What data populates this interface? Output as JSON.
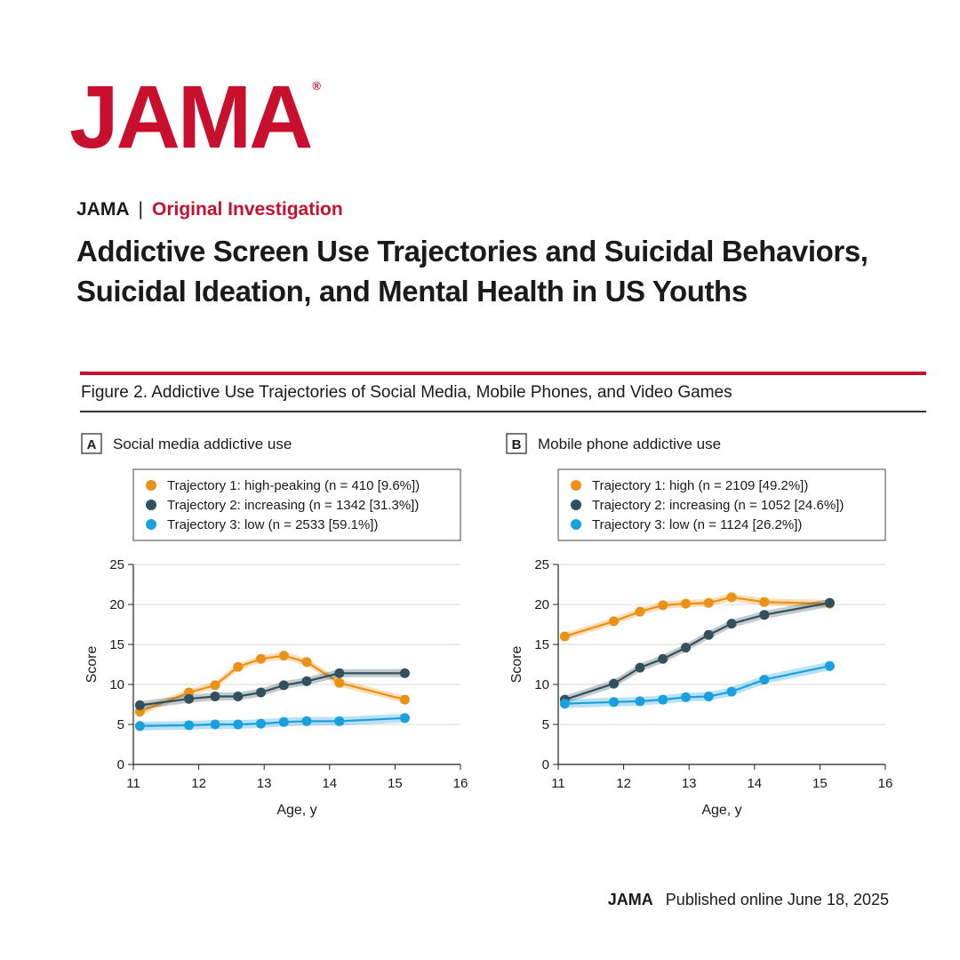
{
  "header": {
    "logo": "JAMA",
    "logo_mark": "®",
    "journal": "JAMA",
    "separator": "|",
    "section": "Original Investigation",
    "title": "Addictive Screen Use Trajectories and Suicidal Behaviors, Suicidal Ideation, and Mental Health in US Youths",
    "figure_title": "Figure 2. Addictive Use Trajectories of Social Media, Mobile Phones, and Video Games"
  },
  "footer": {
    "journal": "JAMA",
    "published": "Published online June 18, 2025"
  },
  "colors": {
    "brand": "#c8102e",
    "trajectory1": "#ea9216",
    "trajectory2": "#34505d",
    "trajectory3": "#1aa0dc"
  },
  "chart_data": [
    {
      "type": "line",
      "panel_letter": "A",
      "panel_title": "Social media addictive use",
      "xlabel": "Age, y",
      "ylabel": "Score",
      "xlim": [
        11,
        16
      ],
      "ylim": [
        0,
        25
      ],
      "xticks": [
        11,
        12,
        13,
        14,
        15,
        16
      ],
      "yticks": [
        0,
        5,
        10,
        15,
        20,
        25
      ],
      "grid": "horizontal",
      "legend_position": "top",
      "series": [
        {
          "name": "Trajectory 1: high-peaking (n = 410 [9.6%])",
          "color": "#ea9216",
          "x": [
            11.1,
            11.85,
            12.25,
            12.6,
            12.95,
            13.3,
            13.65,
            14.15,
            15.15
          ],
          "y": [
            6.6,
            9.0,
            9.9,
            12.2,
            13.2,
            13.6,
            12.8,
            10.2,
            8.1
          ]
        },
        {
          "name": "Trajectory 2: increasing (n = 1342 [31.3%])",
          "color": "#34505d",
          "x": [
            11.1,
            11.85,
            12.25,
            12.6,
            12.95,
            13.3,
            13.65,
            14.15,
            15.15
          ],
          "y": [
            7.4,
            8.2,
            8.5,
            8.5,
            9.0,
            9.9,
            10.4,
            11.4,
            11.4
          ]
        },
        {
          "name": "Trajectory 3: low (n = 2533 [59.1%])",
          "color": "#1aa0dc",
          "x": [
            11.1,
            11.85,
            12.25,
            12.6,
            12.95,
            13.3,
            13.65,
            14.15,
            15.15
          ],
          "y": [
            4.8,
            4.9,
            5.0,
            5.0,
            5.1,
            5.3,
            5.4,
            5.4,
            5.8
          ]
        }
      ]
    },
    {
      "type": "line",
      "panel_letter": "B",
      "panel_title": "Mobile phone addictive use",
      "xlabel": "Age, y",
      "ylabel": "Score",
      "xlim": [
        11,
        16
      ],
      "ylim": [
        0,
        25
      ],
      "xticks": [
        11,
        12,
        13,
        14,
        15,
        16
      ],
      "yticks": [
        0,
        5,
        10,
        15,
        20,
        25
      ],
      "grid": "horizontal",
      "legend_position": "top",
      "series": [
        {
          "name": "Trajectory 1: high (n = 2109 [49.2%])",
          "color": "#ea9216",
          "x": [
            11.1,
            11.85,
            12.25,
            12.6,
            12.95,
            13.3,
            13.65,
            14.15,
            15.15
          ],
          "y": [
            16.0,
            17.9,
            19.1,
            19.9,
            20.1,
            20.2,
            20.9,
            20.3,
            20.1
          ]
        },
        {
          "name": "Trajectory 2: increasing (n = 1052 [24.6%])",
          "color": "#34505d",
          "x": [
            11.1,
            11.85,
            12.25,
            12.6,
            12.95,
            13.3,
            13.65,
            14.15,
            15.15
          ],
          "y": [
            8.1,
            10.1,
            12.1,
            13.2,
            14.6,
            16.2,
            17.6,
            18.7,
            20.2
          ]
        },
        {
          "name": "Trajectory 3: low (n = 1124 [26.2%])",
          "color": "#1aa0dc",
          "x": [
            11.1,
            11.85,
            12.25,
            12.6,
            12.95,
            13.3,
            13.65,
            14.15,
            15.15
          ],
          "y": [
            7.6,
            7.8,
            7.9,
            8.1,
            8.4,
            8.5,
            9.1,
            10.6,
            12.3
          ]
        }
      ]
    }
  ]
}
